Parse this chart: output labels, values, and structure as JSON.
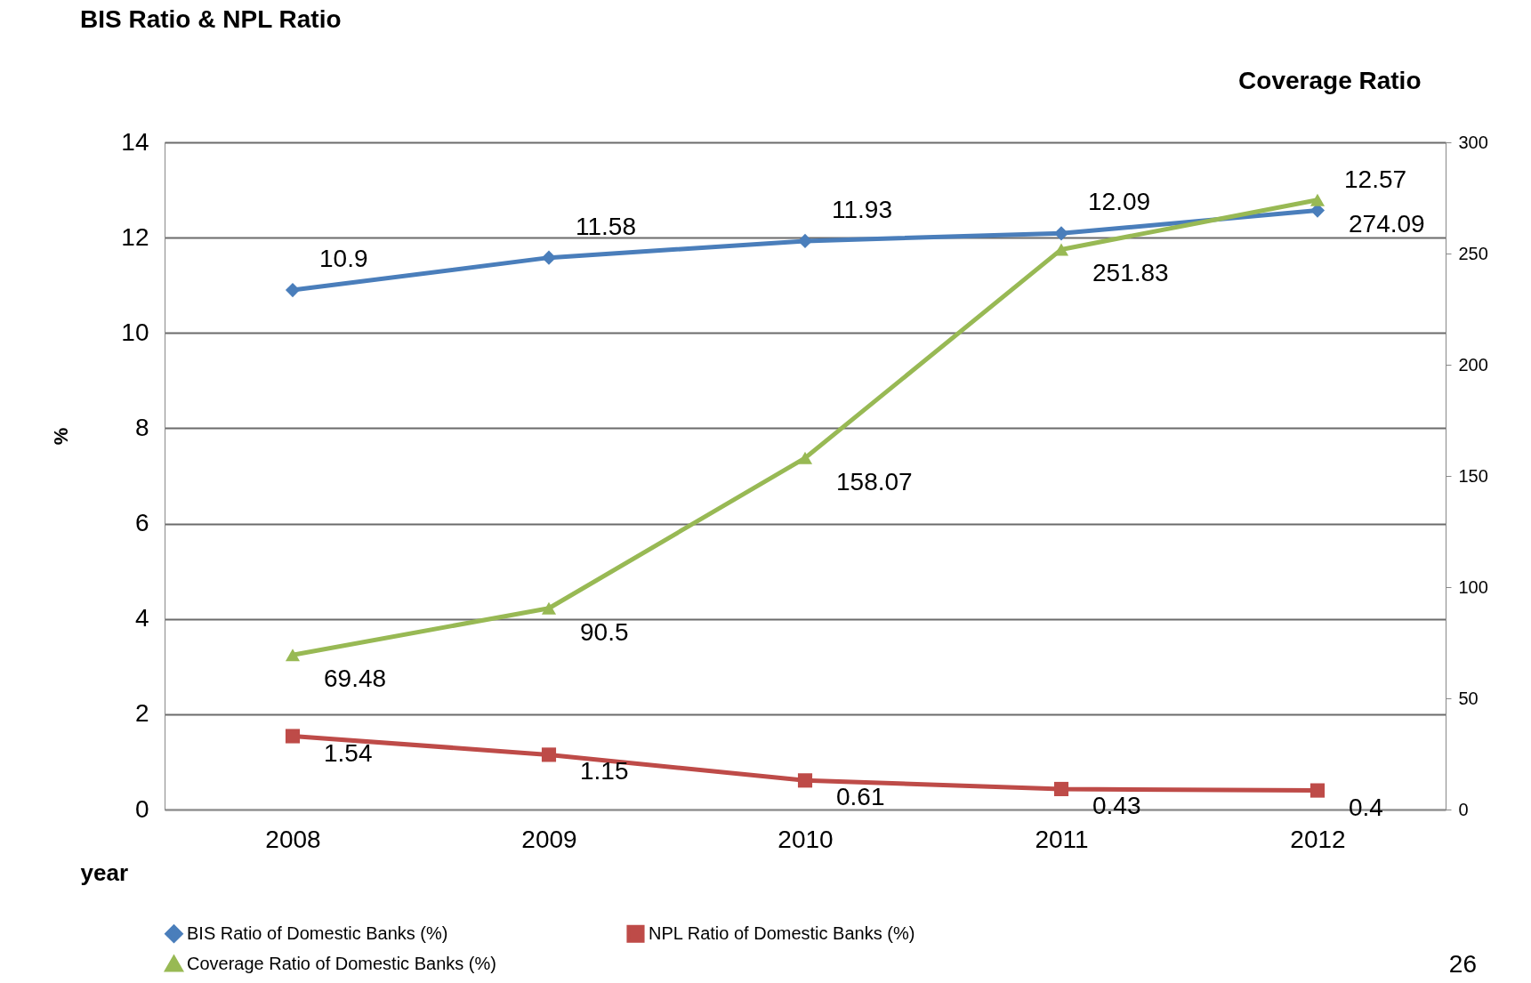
{
  "chart_data": {
    "type": "line",
    "title": "BIS Ratio & NPL Ratio",
    "ylabel": "%",
    "y2label": "Coverage Ratio",
    "xlabel": "year",
    "categories": [
      "2008",
      "2009",
      "2010",
      "2011",
      "2012"
    ],
    "series": [
      {
        "name": "BIS Ratio of Domestic Banks (%)",
        "color": "#4a7ebb",
        "marker": "diamond",
        "values": [
          10.9,
          11.58,
          11.93,
          12.09,
          12.57
        ]
      },
      {
        "name": "NPL Ratio of Domestic Banks (%)",
        "color": "#be4b48",
        "marker": "square",
        "values": [
          1.54,
          1.15,
          0.61,
          0.43,
          0.4
        ]
      },
      {
        "name": "Coverage Ratio of Domestic Banks (%)",
        "color": "#98b954",
        "marker": "triangle",
        "axis": "y2",
        "values": [
          69.48,
          90.5,
          158.07,
          251.83,
          274.09
        ]
      }
    ],
    "ylim": [
      0,
      14
    ],
    "yticks": [
      0,
      2,
      4,
      6,
      8,
      10,
      12,
      14
    ],
    "y2lim": [
      0,
      300
    ],
    "y2ticks": [
      0,
      50,
      100,
      150,
      200,
      250,
      300
    ],
    "grid": "y",
    "legend": "bottom",
    "data_labels": true,
    "annotations": [
      "26"
    ]
  }
}
